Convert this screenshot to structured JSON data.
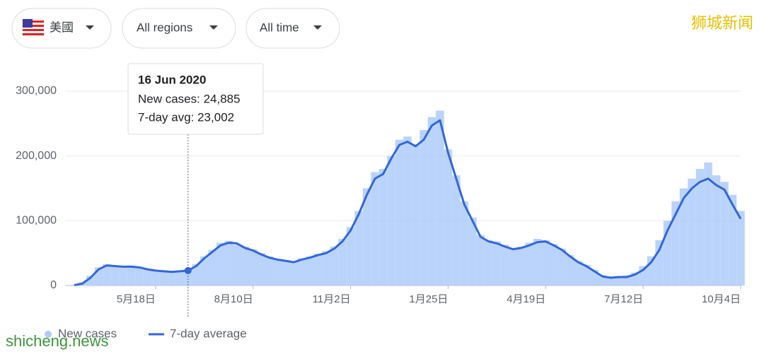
{
  "filters": {
    "country": "美國",
    "region": "All regions",
    "time": "All time"
  },
  "watermarks": {
    "top": "狮城新闻",
    "bottom": "shicheng.news"
  },
  "tooltip": {
    "title": "16 Jun 2020",
    "lines": [
      "New cases: 24,885",
      "7-day avg: 23,002"
    ]
  },
  "chart_data": {
    "type": "bar-line",
    "categories": [
      null,
      null,
      null,
      null,
      null,
      null,
      null,
      null,
      null,
      null,
      "5月18日",
      null,
      null,
      null,
      null,
      null,
      null,
      null,
      null,
      null,
      null,
      null,
      "8月10日",
      null,
      null,
      null,
      null,
      null,
      null,
      null,
      null,
      null,
      null,
      null,
      "11月2日",
      null,
      null,
      null,
      null,
      null,
      null,
      null,
      null,
      null,
      null,
      null,
      "1月25日",
      null,
      null,
      null,
      null,
      null,
      null,
      null,
      null,
      null,
      null,
      null,
      "4月19日",
      null,
      null,
      null,
      null,
      null,
      null,
      null,
      null,
      null,
      null,
      null,
      "7月12日",
      null,
      null,
      null,
      null,
      null,
      null,
      null,
      null,
      null,
      null,
      null,
      "10月4日"
    ],
    "series": [
      {
        "name": "New cases",
        "color": "#aecbfa",
        "values": [
          1000,
          5000,
          15000,
          28000,
          33000,
          31000,
          30000,
          31000,
          27000,
          26000,
          24000,
          23000,
          22000,
          21000,
          25000,
          33000,
          45000,
          55000,
          66000,
          69000,
          63000,
          60000,
          56000,
          50000,
          45000,
          41000,
          39000,
          37000,
          42000,
          45000,
          49000,
          53000,
          60000,
          72000,
          90000,
          115000,
          150000,
          175000,
          180000,
          200000,
          225000,
          230000,
          218000,
          240000,
          260000,
          270000,
          210000,
          170000,
          130000,
          105000,
          78000,
          70000,
          68000,
          63000,
          58000,
          60000,
          66000,
          72000,
          70000,
          64000,
          57000,
          47000,
          38000,
          32000,
          24000,
          16000,
          14000,
          15000,
          16000,
          20000,
          30000,
          45000,
          70000,
          100000,
          130000,
          150000,
          165000,
          180000,
          190000,
          170000,
          160000,
          140000,
          115000
        ]
      },
      {
        "name": "7-day average",
        "color": "#3367d6",
        "values": [
          500,
          3000,
          12000,
          25000,
          31000,
          30000,
          29000,
          29000,
          28000,
          25000,
          23000,
          22000,
          21000,
          22000,
          23000,
          30000,
          42000,
          52000,
          62000,
          66000,
          65000,
          58000,
          54000,
          48000,
          43000,
          40000,
          38000,
          36000,
          40000,
          43000,
          47000,
          50000,
          57000,
          68000,
          85000,
          110000,
          140000,
          165000,
          172000,
          196000,
          217000,
          222000,
          215000,
          225000,
          247000,
          255000,
          205000,
          165000,
          125000,
          100000,
          75000,
          68000,
          65000,
          60000,
          56000,
          58000,
          62000,
          67000,
          68000,
          62000,
          55000,
          45000,
          36000,
          30000,
          22000,
          14000,
          12000,
          13000,
          13000,
          17000,
          24000,
          36000,
          55000,
          85000,
          110000,
          135000,
          150000,
          160000,
          165000,
          155000,
          148000,
          125000,
          103000
        ]
      }
    ],
    "ylim": [
      0,
      300000
    ],
    "yticks": [
      0,
      {
        "value": 100000,
        "label": "100,000"
      },
      {
        "value": 200000,
        "label": "200,000"
      },
      {
        "value": 300000,
        "label": "300,000"
      }
    ],
    "grid": true
  }
}
